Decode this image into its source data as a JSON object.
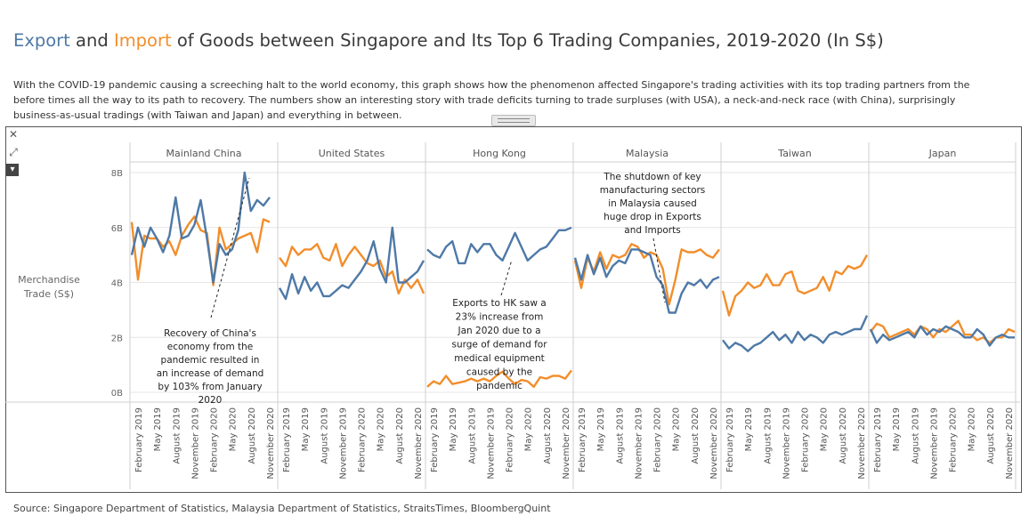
{
  "header": {
    "title_parts": [
      "Export",
      " and ",
      "Import",
      " of Goods between Singapore and Its Top 6 Trading Companies, 2019-2020 (In S$)"
    ],
    "description": "With the COVID-19 pandemic causing a screeching halt to the world economy, this graph shows how the phenomenon affected Singapore's trading activities with its top trading partners from the before times all the way to its path to recovery. The numbers show an interesting story with trade deficits turning to trade surpluses (with USA),  a neck-and-neck race (with China), surprisingly business-as-usual tradings (with Taiwan and Japan) and everything in between."
  },
  "toolbar": {
    "close_icon": "✕",
    "expand_icon": "⤢",
    "menu_icon": "▾"
  },
  "footer": {
    "source": "Source: Singapore Department of Statistics, Malaysia Department of Statistics, StraitsTimes, BloombergQuint"
  },
  "colors": {
    "export": "#4e79a7",
    "import": "#f28e2b",
    "grid": "#e6e6e6",
    "divider": "#cfcfcf"
  },
  "chart_data": {
    "type": "line",
    "ylabel": "Merchandise Trade (S$)",
    "ylim": [
      0,
      8.5
    ],
    "yticks": [
      0,
      2,
      4,
      6,
      8
    ],
    "ytick_labels": [
      "0B",
      "2B",
      "4B",
      "6B",
      "8B"
    ],
    "x_tick_labels": [
      "February 2019",
      "May 2019",
      "August 2019",
      "November 2019",
      "February 2020",
      "May 2020",
      "August 2020",
      "November 2020"
    ],
    "x_months": [
      "Jan 2019",
      "Feb 2019",
      "Mar 2019",
      "Apr 2019",
      "May 2019",
      "Jun 2019",
      "Jul 2019",
      "Aug 2019",
      "Sep 2019",
      "Oct 2019",
      "Nov 2019",
      "Dec 2019",
      "Jan 2020",
      "Feb 2020",
      "Mar 2020",
      "Apr 2020",
      "May 2020",
      "Jun 2020",
      "Jul 2020",
      "Aug 2020",
      "Sep 2020",
      "Oct 2020",
      "Nov 2020",
      "Dec 2020"
    ],
    "panels": [
      {
        "name": "Mainland China",
        "export": [
          5.0,
          6.0,
          5.3,
          6.0,
          5.6,
          5.1,
          5.7,
          7.1,
          5.6,
          5.7,
          6.1,
          7.0,
          5.6,
          4.0,
          5.4,
          5.0,
          5.2,
          5.9,
          8.0,
          6.6,
          7.0,
          6.8,
          7.1,
          null
        ],
        "import": [
          6.2,
          4.1,
          5.7,
          5.6,
          5.6,
          5.3,
          5.5,
          5.0,
          5.7,
          6.1,
          6.4,
          5.9,
          5.8,
          3.9,
          6.0,
          5.2,
          5.4,
          5.6,
          5.7,
          5.8,
          5.1,
          6.3,
          6.2,
          null
        ],
        "annotation": "Recovery of China's economy from the pandemic resulted in an increase of demand by 103% from January 2020"
      },
      {
        "name": "United States",
        "export": [
          3.8,
          3.4,
          4.3,
          3.6,
          4.2,
          3.7,
          4.0,
          3.5,
          3.5,
          3.7,
          3.9,
          3.8,
          4.1,
          4.4,
          4.8,
          5.5,
          4.5,
          4.0,
          6.0,
          4.0,
          4.0,
          4.2,
          4.4,
          4.8
        ],
        "import": [
          4.9,
          4.6,
          5.3,
          5.0,
          5.2,
          5.2,
          5.4,
          4.9,
          4.8,
          5.4,
          4.6,
          5.0,
          5.3,
          5.0,
          4.7,
          4.6,
          4.8,
          4.2,
          4.4,
          3.6,
          4.1,
          3.8,
          4.1,
          3.6
        ]
      },
      {
        "name": "Hong Kong",
        "export": [
          5.2,
          5.0,
          4.9,
          5.3,
          5.5,
          4.7,
          4.7,
          5.4,
          5.1,
          5.4,
          5.4,
          5.0,
          4.8,
          5.3,
          5.8,
          5.3,
          4.8,
          5.0,
          5.2,
          5.3,
          5.6,
          5.9,
          5.9,
          6.0
        ],
        "import": [
          0.2,
          0.4,
          0.3,
          0.6,
          0.3,
          0.35,
          0.4,
          0.5,
          0.4,
          0.5,
          0.4,
          0.6,
          0.75,
          0.5,
          0.3,
          0.45,
          0.4,
          0.2,
          0.55,
          0.5,
          0.6,
          0.6,
          0.5,
          0.8
        ],
        "annotation": "Exports to HK saw a 23% increase from Jan 2020 due to a surge of demand for medical equipment caused by the pandemic"
      },
      {
        "name": "Malaysia",
        "export": [
          4.9,
          4.1,
          5.0,
          4.3,
          4.9,
          4.2,
          4.6,
          4.8,
          4.7,
          5.2,
          5.2,
          5.1,
          5.0,
          4.2,
          3.9,
          2.9,
          2.9,
          3.6,
          4.0,
          3.9,
          4.1,
          3.8,
          4.1,
          4.2
        ],
        "import": [
          4.8,
          3.8,
          4.9,
          4.4,
          5.1,
          4.5,
          5.0,
          4.9,
          5.0,
          5.4,
          5.3,
          4.9,
          5.1,
          5.0,
          4.5,
          3.2,
          4.1,
          5.2,
          5.1,
          5.1,
          5.2,
          5.0,
          4.9,
          5.2
        ],
        "annotation": "The shutdown of key manufacturing sectors in Malaysia caused huge drop in Exports and Imports"
      },
      {
        "name": "Taiwan",
        "export": [
          1.9,
          1.6,
          1.8,
          1.7,
          1.5,
          1.7,
          1.8,
          2.0,
          2.2,
          1.9,
          2.1,
          1.8,
          2.2,
          1.9,
          2.1,
          2.0,
          1.8,
          2.1,
          2.2,
          2.1,
          2.2,
          2.3,
          2.3,
          2.8
        ],
        "import": [
          3.7,
          2.8,
          3.5,
          3.7,
          4.0,
          3.8,
          3.9,
          4.3,
          3.9,
          3.9,
          4.3,
          4.4,
          3.7,
          3.6,
          3.7,
          3.8,
          4.2,
          3.7,
          4.4,
          4.3,
          4.6,
          4.5,
          4.6,
          5.0
        ]
      },
      {
        "name": "Japan",
        "export": [
          2.3,
          1.8,
          2.1,
          1.9,
          2.0,
          2.1,
          2.2,
          2.0,
          2.4,
          2.1,
          2.3,
          2.2,
          2.4,
          2.3,
          2.2,
          2.0,
          2.0,
          2.3,
          2.1,
          1.7,
          2.0,
          2.1,
          2.0,
          2.0
        ],
        "import": [
          2.2,
          2.5,
          2.4,
          2.0,
          2.1,
          2.2,
          2.3,
          2.1,
          2.4,
          2.3,
          2.0,
          2.3,
          2.2,
          2.4,
          2.6,
          2.1,
          2.1,
          1.9,
          2.0,
          1.8,
          2.0,
          2.0,
          2.3,
          2.2
        ]
      }
    ]
  }
}
